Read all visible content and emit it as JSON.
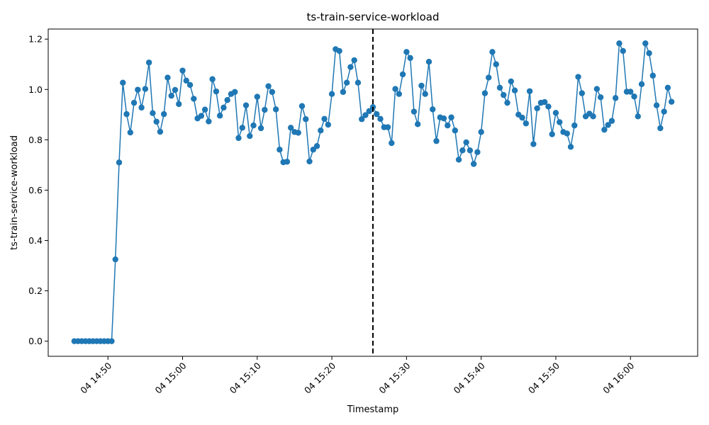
{
  "chart_data": {
    "type": "line",
    "title": "ts-train-service-workload",
    "xlabel": "Timestamp",
    "ylabel": "ts-train-service-workload",
    "x_axis_type": "time",
    "x_range": [
      "2024-01-04T14:42:00",
      "2024-01-04T16:09:00"
    ],
    "ylim": [
      -0.06,
      1.24
    ],
    "x_ticks": [
      {
        "t": "2024-01-04T14:50:00",
        "label": "04 14:50"
      },
      {
        "t": "2024-01-04T15:00:00",
        "label": "04 15:00"
      },
      {
        "t": "2024-01-04T15:10:00",
        "label": "04 15:10"
      },
      {
        "t": "2024-01-04T15:20:00",
        "label": "04 15:20"
      },
      {
        "t": "2024-01-04T15:30:00",
        "label": "04 15:30"
      },
      {
        "t": "2024-01-04T15:40:00",
        "label": "04 15:40"
      },
      {
        "t": "2024-01-04T15:50:00",
        "label": "04 15:50"
      },
      {
        "t": "2024-01-04T16:00:00",
        "label": "04 16:00"
      }
    ],
    "y_ticks": [
      {
        "v": 0.0,
        "label": "0.0"
      },
      {
        "v": 0.2,
        "label": "0.2"
      },
      {
        "v": 0.4,
        "label": "0.4"
      },
      {
        "v": 0.6,
        "label": "0.6"
      },
      {
        "v": 0.8,
        "label": "0.8"
      },
      {
        "v": 1.0,
        "label": "1.0"
      },
      {
        "v": 1.2,
        "label": "1.2"
      }
    ],
    "grid": false,
    "legend": "none",
    "line_color": "#1f77b4",
    "marker": "circle",
    "vline": {
      "t": "2024-01-04T15:25:30",
      "style": "dashed",
      "color": "#000000"
    },
    "series": [
      {
        "start": "2024-01-04T14:45:30",
        "interval_seconds": 30,
        "values": [
          0.0,
          0.0,
          0.0,
          0.0,
          0.0,
          0.0,
          0.0,
          0.0,
          0.0,
          0.0,
          0.0,
          0.325,
          0.71,
          1.027,
          0.902,
          0.829,
          0.947,
          0.999,
          0.928,
          1.002,
          1.107,
          0.906,
          0.872,
          0.832,
          0.902,
          1.047,
          0.975,
          0.998,
          0.942,
          1.075,
          1.035,
          1.018,
          0.963,
          0.885,
          0.895,
          0.92,
          0.873,
          1.041,
          0.992,
          0.896,
          0.928,
          0.958,
          0.982,
          0.99,
          0.807,
          0.848,
          0.937,
          0.815,
          0.857,
          0.971,
          0.846,
          0.919,
          1.013,
          0.99,
          0.921,
          0.761,
          0.711,
          0.713,
          0.848,
          0.831,
          0.828,
          0.934,
          0.882,
          0.714,
          0.761,
          0.775,
          0.837,
          0.883,
          0.86,
          0.982,
          1.16,
          1.153,
          0.99,
          1.027,
          1.089,
          1.116,
          1.027,
          0.882,
          0.898,
          0.914,
          0.93,
          0.902,
          0.883,
          0.85,
          0.85,
          0.787,
          1.002,
          0.982,
          1.06,
          1.149,
          1.125,
          0.912,
          0.862,
          1.015,
          0.982,
          1.11,
          0.921,
          0.795,
          0.889,
          0.885,
          0.857,
          0.889,
          0.837,
          0.721,
          0.758,
          0.79,
          0.758,
          0.704,
          0.751,
          0.831,
          0.985,
          1.047,
          1.149,
          1.1,
          1.007,
          0.978,
          0.947,
          1.032,
          0.996,
          0.9,
          0.888,
          0.865,
          0.993,
          0.783,
          0.925,
          0.947,
          0.95,
          0.932,
          0.822,
          0.907,
          0.87,
          0.831,
          0.825,
          0.772,
          0.857,
          1.05,
          0.985,
          0.893,
          0.904,
          0.893,
          1.002,
          0.969,
          0.84,
          0.859,
          0.875,
          0.966,
          1.183,
          1.153,
          0.991,
          0.991,
          0.972,
          0.893,
          1.021,
          1.183,
          1.144,
          1.055,
          0.937,
          0.846,
          0.912,
          1.007,
          0.951
        ]
      }
    ]
  }
}
